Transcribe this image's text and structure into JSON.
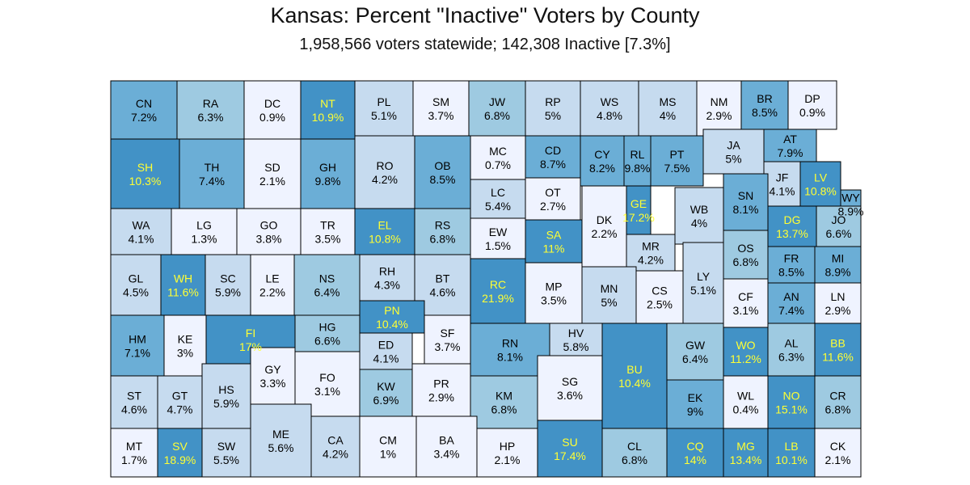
{
  "title": "Kansas:  Percent \"Inactive\" Voters by County",
  "subtitle": "1,958,566 voters statewide; 142,308 Inactive [7.3%]",
  "colors": {
    "c0": "#eff3ff",
    "c1": "#c6dbef",
    "c2": "#9ecae1",
    "c3": "#6baed6",
    "c4": "#4292c6",
    "label_dark": "#000000",
    "label_highlight": "#ffff33"
  },
  "counties": [
    {
      "abbr": "CN",
      "pct": "7.2%",
      "value": 7.2
    },
    {
      "abbr": "RA",
      "pct": "6.3%",
      "value": 6.3
    },
    {
      "abbr": "DC",
      "pct": "0.9%",
      "value": 0.9
    },
    {
      "abbr": "NT",
      "pct": "10.9%",
      "value": 10.9
    },
    {
      "abbr": "PL",
      "pct": "5.1%",
      "value": 5.1
    },
    {
      "abbr": "SM",
      "pct": "3.7%",
      "value": 3.7
    },
    {
      "abbr": "JW",
      "pct": "6.8%",
      "value": 6.8
    },
    {
      "abbr": "RP",
      "pct": "5%",
      "value": 5
    },
    {
      "abbr": "WS",
      "pct": "4.8%",
      "value": 4.8
    },
    {
      "abbr": "MS",
      "pct": "4%",
      "value": 4
    },
    {
      "abbr": "NM",
      "pct": "2.9%",
      "value": 2.9
    },
    {
      "abbr": "BR",
      "pct": "8.5%",
      "value": 8.5
    },
    {
      "abbr": "DP",
      "pct": "0.9%",
      "value": 0.9
    },
    {
      "abbr": "SH",
      "pct": "10.3%",
      "value": 10.3
    },
    {
      "abbr": "TH",
      "pct": "7.4%",
      "value": 7.4
    },
    {
      "abbr": "SD",
      "pct": "2.1%",
      "value": 2.1
    },
    {
      "abbr": "GH",
      "pct": "9.8%",
      "value": 9.8
    },
    {
      "abbr": "RO",
      "pct": "4.2%",
      "value": 4.2
    },
    {
      "abbr": "OB",
      "pct": "8.5%",
      "value": 8.5
    },
    {
      "abbr": "MC",
      "pct": "0.7%",
      "value": 0.7
    },
    {
      "abbr": "CD",
      "pct": "8.7%",
      "value": 8.7
    },
    {
      "abbr": "OT",
      "pct": "2.7%",
      "value": 2.7
    },
    {
      "abbr": "CY",
      "pct": "8.2%",
      "value": 8.2
    },
    {
      "abbr": "RL",
      "pct": "9.8%",
      "value": 9.8
    },
    {
      "abbr": "PT",
      "pct": "7.5%",
      "value": 7.5
    },
    {
      "abbr": "JA",
      "pct": "5%",
      "value": 5
    },
    {
      "abbr": "AT",
      "pct": "7.9%",
      "value": 7.9
    },
    {
      "abbr": "JF",
      "pct": "4.1%",
      "value": 4.1
    },
    {
      "abbr": "LV",
      "pct": "10.8%",
      "value": 10.8
    },
    {
      "abbr": "WY",
      "pct": "8.9%",
      "value": 8.9
    },
    {
      "abbr": "WA",
      "pct": "4.1%",
      "value": 4.1
    },
    {
      "abbr": "LG",
      "pct": "1.3%",
      "value": 1.3
    },
    {
      "abbr": "GO",
      "pct": "3.8%",
      "value": 3.8
    },
    {
      "abbr": "TR",
      "pct": "3.5%",
      "value": 3.5
    },
    {
      "abbr": "EL",
      "pct": "10.8%",
      "value": 10.8
    },
    {
      "abbr": "RS",
      "pct": "6.8%",
      "value": 6.8
    },
    {
      "abbr": "LC",
      "pct": "5.4%",
      "value": 5.4
    },
    {
      "abbr": "EW",
      "pct": "1.5%",
      "value": 1.5
    },
    {
      "abbr": "SA",
      "pct": "11%",
      "value": 11
    },
    {
      "abbr": "DK",
      "pct": "2.2%",
      "value": 2.2
    },
    {
      "abbr": "GE",
      "pct": "17.2%",
      "value": 17.2
    },
    {
      "abbr": "WB",
      "pct": "4%",
      "value": 4
    },
    {
      "abbr": "MR",
      "pct": "4.2%",
      "value": 4.2
    },
    {
      "abbr": "SN",
      "pct": "8.1%",
      "value": 8.1
    },
    {
      "abbr": "DG",
      "pct": "13.7%",
      "value": 13.7
    },
    {
      "abbr": "JO",
      "pct": "6.6%",
      "value": 6.6
    },
    {
      "abbr": "GL",
      "pct": "4.5%",
      "value": 4.5
    },
    {
      "abbr": "WH",
      "pct": "11.6%",
      "value": 11.6
    },
    {
      "abbr": "SC",
      "pct": "5.9%",
      "value": 5.9
    },
    {
      "abbr": "LE",
      "pct": "2.2%",
      "value": 2.2
    },
    {
      "abbr": "NS",
      "pct": "6.4%",
      "value": 6.4
    },
    {
      "abbr": "RH",
      "pct": "4.3%",
      "value": 4.3
    },
    {
      "abbr": "BT",
      "pct": "4.6%",
      "value": 4.6
    },
    {
      "abbr": "RC",
      "pct": "21.9%",
      "value": 21.9
    },
    {
      "abbr": "MP",
      "pct": "3.5%",
      "value": 3.5
    },
    {
      "abbr": "MN",
      "pct": "5%",
      "value": 5
    },
    {
      "abbr": "CS",
      "pct": "2.5%",
      "value": 2.5
    },
    {
      "abbr": "LY",
      "pct": "5.1%",
      "value": 5.1
    },
    {
      "abbr": "OS",
      "pct": "6.8%",
      "value": 6.8
    },
    {
      "abbr": "FR",
      "pct": "8.5%",
      "value": 8.5
    },
    {
      "abbr": "MI",
      "pct": "8.9%",
      "value": 8.9
    },
    {
      "abbr": "HM",
      "pct": "7.1%",
      "value": 7.1
    },
    {
      "abbr": "KE",
      "pct": "3%",
      "value": 3
    },
    {
      "abbr": "FI",
      "pct": "17%",
      "value": 17
    },
    {
      "abbr": "HG",
      "pct": "6.6%",
      "value": 6.6
    },
    {
      "abbr": "PN",
      "pct": "10.4%",
      "value": 10.4
    },
    {
      "abbr": "SF",
      "pct": "3.7%",
      "value": 3.7
    },
    {
      "abbr": "ED",
      "pct": "4.1%",
      "value": 4.1
    },
    {
      "abbr": "RN",
      "pct": "8.1%",
      "value": 8.1
    },
    {
      "abbr": "HV",
      "pct": "5.8%",
      "value": 5.8
    },
    {
      "abbr": "BU",
      "pct": "10.4%",
      "value": 10.4
    },
    {
      "abbr": "GW",
      "pct": "6.4%",
      "value": 6.4
    },
    {
      "abbr": "CF",
      "pct": "3.1%",
      "value": 3.1
    },
    {
      "abbr": "AN",
      "pct": "7.4%",
      "value": 7.4
    },
    {
      "abbr": "LN",
      "pct": "2.9%",
      "value": 2.9
    },
    {
      "abbr": "WO",
      "pct": "11.2%",
      "value": 11.2
    },
    {
      "abbr": "AL",
      "pct": "6.3%",
      "value": 6.3
    },
    {
      "abbr": "BB",
      "pct": "11.6%",
      "value": 11.6
    },
    {
      "abbr": "ST",
      "pct": "4.6%",
      "value": 4.6
    },
    {
      "abbr": "GT",
      "pct": "4.7%",
      "value": 4.7
    },
    {
      "abbr": "HS",
      "pct": "5.9%",
      "value": 5.9
    },
    {
      "abbr": "GY",
      "pct": "3.3%",
      "value": 3.3
    },
    {
      "abbr": "FO",
      "pct": "3.1%",
      "value": 3.1
    },
    {
      "abbr": "KW",
      "pct": "6.9%",
      "value": 6.9
    },
    {
      "abbr": "PR",
      "pct": "2.9%",
      "value": 2.9
    },
    {
      "abbr": "KM",
      "pct": "6.8%",
      "value": 6.8
    },
    {
      "abbr": "SG",
      "pct": "3.6%",
      "value": 3.6
    },
    {
      "abbr": "EK",
      "pct": "9%",
      "value": 9
    },
    {
      "abbr": "WL",
      "pct": "0.4%",
      "value": 0.4
    },
    {
      "abbr": "NO",
      "pct": "15.1%",
      "value": 15.1
    },
    {
      "abbr": "CR",
      "pct": "6.8%",
      "value": 6.8
    },
    {
      "abbr": "MT",
      "pct": "1.7%",
      "value": 1.7
    },
    {
      "abbr": "SV",
      "pct": "18.9%",
      "value": 18.9
    },
    {
      "abbr": "SW",
      "pct": "5.5%",
      "value": 5.5
    },
    {
      "abbr": "ME",
      "pct": "5.6%",
      "value": 5.6
    },
    {
      "abbr": "CA",
      "pct": "4.2%",
      "value": 4.2
    },
    {
      "abbr": "CM",
      "pct": "1%",
      "value": 1
    },
    {
      "abbr": "BA",
      "pct": "3.4%",
      "value": 3.4
    },
    {
      "abbr": "HP",
      "pct": "2.1%",
      "value": 2.1
    },
    {
      "abbr": "SU",
      "pct": "17.4%",
      "value": 17.4
    },
    {
      "abbr": "CL",
      "pct": "6.8%",
      "value": 6.8
    },
    {
      "abbr": "CQ",
      "pct": "14%",
      "value": 14
    },
    {
      "abbr": "MG",
      "pct": "13.4%",
      "value": 13.4
    },
    {
      "abbr": "LB",
      "pct": "10.1%",
      "value": 10.1
    },
    {
      "abbr": "CK",
      "pct": "2.1%",
      "value": 2.1
    }
  ]
}
